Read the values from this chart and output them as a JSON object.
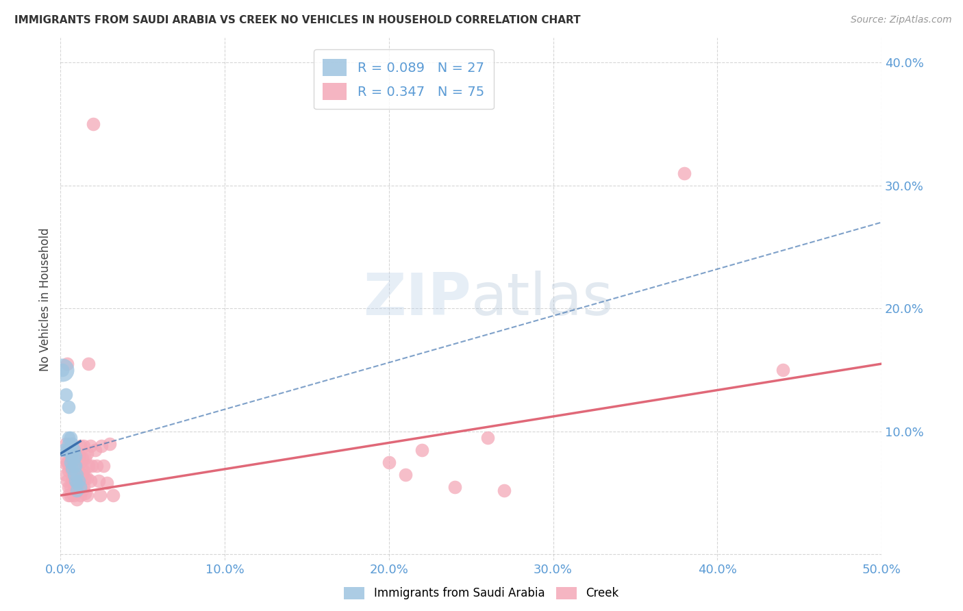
{
  "title": "IMMIGRANTS FROM SAUDI ARABIA VS CREEK NO VEHICLES IN HOUSEHOLD CORRELATION CHART",
  "source": "Source: ZipAtlas.com",
  "tick_color": "#5b9bd5",
  "ylabel": "No Vehicles in Household",
  "xlim": [
    0.0,
    0.5
  ],
  "ylim": [
    -0.005,
    0.42
  ],
  "xticks": [
    0.0,
    0.1,
    0.2,
    0.3,
    0.4,
    0.5
  ],
  "yticks": [
    0.0,
    0.1,
    0.2,
    0.3,
    0.4
  ],
  "xtick_labels": [
    "0.0%",
    "10.0%",
    "20.0%",
    "30.0%",
    "40.0%",
    "50.0%"
  ],
  "ytick_labels_right": [
    "",
    "10.0%",
    "20.0%",
    "30.0%",
    "40.0%"
  ],
  "grid_color": "#cccccc",
  "background": "#ffffff",
  "blue_R": 0.089,
  "blue_N": 27,
  "pink_R": 0.347,
  "pink_N": 75,
  "blue_color": "#9ec4e0",
  "pink_color": "#f4a8b8",
  "blue_line_color": "#3a6fad",
  "pink_line_color": "#e06878",
  "watermark_zip": "ZIP",
  "watermark_atlas": "atlas",
  "blue_points": [
    [
      0.001,
      0.15
    ],
    [
      0.002,
      0.085
    ],
    [
      0.003,
      0.13
    ],
    [
      0.004,
      0.085
    ],
    [
      0.005,
      0.12
    ],
    [
      0.005,
      0.095
    ],
    [
      0.005,
      0.09
    ],
    [
      0.006,
      0.095
    ],
    [
      0.006,
      0.088
    ],
    [
      0.006,
      0.082
    ],
    [
      0.006,
      0.075
    ],
    [
      0.007,
      0.09
    ],
    [
      0.007,
      0.082
    ],
    [
      0.007,
      0.078
    ],
    [
      0.007,
      0.07
    ],
    [
      0.008,
      0.085
    ],
    [
      0.008,
      0.078
    ],
    [
      0.008,
      0.072
    ],
    [
      0.008,
      0.065
    ],
    [
      0.009,
      0.08
    ],
    [
      0.009,
      0.072
    ],
    [
      0.009,
      0.06
    ],
    [
      0.01,
      0.065
    ],
    [
      0.01,
      0.058
    ],
    [
      0.01,
      0.052
    ],
    [
      0.011,
      0.06
    ],
    [
      0.012,
      0.055
    ]
  ],
  "pink_points": [
    [
      0.002,
      0.075
    ],
    [
      0.003,
      0.09
    ],
    [
      0.003,
      0.065
    ],
    [
      0.004,
      0.155
    ],
    [
      0.004,
      0.075
    ],
    [
      0.004,
      0.06
    ],
    [
      0.005,
      0.085
    ],
    [
      0.005,
      0.075
    ],
    [
      0.005,
      0.068
    ],
    [
      0.005,
      0.055
    ],
    [
      0.005,
      0.048
    ],
    [
      0.006,
      0.088
    ],
    [
      0.006,
      0.078
    ],
    [
      0.006,
      0.07
    ],
    [
      0.006,
      0.055
    ],
    [
      0.006,
      0.048
    ],
    [
      0.007,
      0.085
    ],
    [
      0.007,
      0.078
    ],
    [
      0.007,
      0.068
    ],
    [
      0.007,
      0.06
    ],
    [
      0.007,
      0.05
    ],
    [
      0.008,
      0.085
    ],
    [
      0.008,
      0.078
    ],
    [
      0.008,
      0.07
    ],
    [
      0.008,
      0.06
    ],
    [
      0.008,
      0.048
    ],
    [
      0.009,
      0.08
    ],
    [
      0.009,
      0.065
    ],
    [
      0.009,
      0.055
    ],
    [
      0.01,
      0.075
    ],
    [
      0.01,
      0.065
    ],
    [
      0.01,
      0.055
    ],
    [
      0.01,
      0.045
    ],
    [
      0.011,
      0.08
    ],
    [
      0.011,
      0.068
    ],
    [
      0.011,
      0.058
    ],
    [
      0.012,
      0.088
    ],
    [
      0.012,
      0.075
    ],
    [
      0.012,
      0.062
    ],
    [
      0.012,
      0.048
    ],
    [
      0.013,
      0.078
    ],
    [
      0.013,
      0.065
    ],
    [
      0.013,
      0.052
    ],
    [
      0.014,
      0.088
    ],
    [
      0.014,
      0.068
    ],
    [
      0.014,
      0.055
    ],
    [
      0.015,
      0.078
    ],
    [
      0.015,
      0.062
    ],
    [
      0.015,
      0.05
    ],
    [
      0.016,
      0.082
    ],
    [
      0.016,
      0.062
    ],
    [
      0.016,
      0.048
    ],
    [
      0.017,
      0.155
    ],
    [
      0.017,
      0.072
    ],
    [
      0.018,
      0.088
    ],
    [
      0.018,
      0.06
    ],
    [
      0.019,
      0.072
    ],
    [
      0.02,
      0.35
    ],
    [
      0.021,
      0.085
    ],
    [
      0.022,
      0.072
    ],
    [
      0.023,
      0.06
    ],
    [
      0.024,
      0.048
    ],
    [
      0.025,
      0.088
    ],
    [
      0.026,
      0.072
    ],
    [
      0.028,
      0.058
    ],
    [
      0.03,
      0.09
    ],
    [
      0.032,
      0.048
    ],
    [
      0.2,
      0.075
    ],
    [
      0.21,
      0.065
    ],
    [
      0.22,
      0.085
    ],
    [
      0.24,
      0.055
    ],
    [
      0.26,
      0.095
    ],
    [
      0.27,
      0.052
    ],
    [
      0.38,
      0.31
    ],
    [
      0.44,
      0.15
    ]
  ]
}
